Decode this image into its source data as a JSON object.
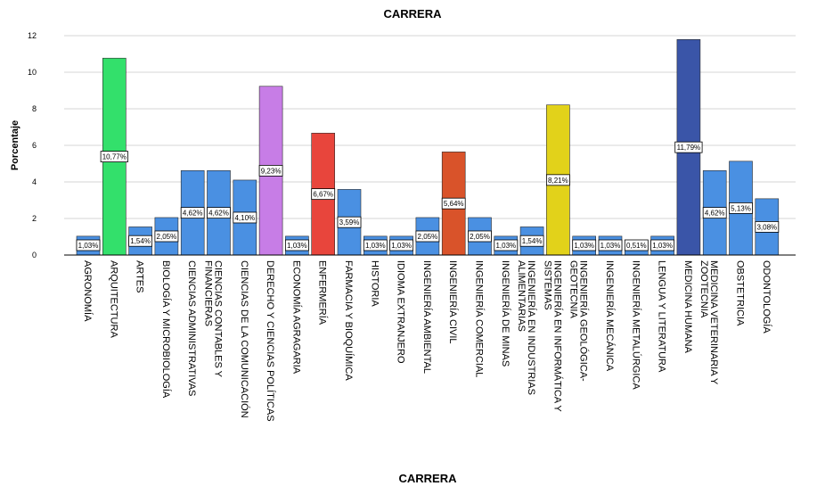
{
  "chart_data": {
    "type": "bar",
    "title": "CARRERA",
    "xlabel": "CARRERA",
    "ylabel": "Porcentaje",
    "ylim": [
      0,
      12
    ],
    "yticks": [
      0,
      2,
      4,
      6,
      8,
      10,
      12
    ],
    "grid": true,
    "categories": [
      [
        "AGRONOMÍA"
      ],
      [
        "ARQUITECTURA"
      ],
      [
        "ARTES"
      ],
      [
        "BIOLOGÍA Y MICROBIOLOGÍA"
      ],
      [
        "CIENCIAS ADMINISTRATIVAS"
      ],
      [
        "CIENCIAS CONTABLES Y",
        "FINANCIERAS"
      ],
      [
        "CIENCIAS DE LA COMUNICACIÓN"
      ],
      [
        "DERECHO Y CIENCIAS POLÍTICAS"
      ],
      [
        "ECONOMÍA AGRAGARIA"
      ],
      [
        "ENFERMERÍA"
      ],
      [
        "FARMACIA Y BIOQUÍMICA"
      ],
      [
        "HISTORIA"
      ],
      [
        "IDIOMA EXTRANJERO"
      ],
      [
        "INGENIERÍA AMBIENTAL"
      ],
      [
        "INGENIERÍA CIVIL"
      ],
      [
        "INGENIERÍA COMERCIAL"
      ],
      [
        "INGENIERÍA DE MINAS"
      ],
      [
        "INGENIERÍA EN INDUSTRIAS",
        "ALIMENTARIAS"
      ],
      [
        "INGENIERÍA EN INFORMÁTICA Y",
        "SISTEMAS"
      ],
      [
        "INGENIERÍA GEOLÓGICA-",
        "GEOTECNIA"
      ],
      [
        "INGENIERÍA MECÁNICA"
      ],
      [
        "INGENIERÍA METALÚRGICA"
      ],
      [
        "LENGUA Y LITERATURA"
      ],
      [
        "MEDICINA HUMANA"
      ],
      [
        "MEDICINA VETERINARIA Y",
        "ZOOTECNIA"
      ],
      [
        "OBSTETRICIA"
      ],
      [
        "ODONTOLOGÍA"
      ]
    ],
    "values": [
      1.03,
      10.77,
      1.54,
      2.05,
      4.62,
      4.62,
      4.1,
      9.23,
      1.03,
      6.67,
      3.59,
      1.03,
      1.03,
      2.05,
      5.64,
      2.05,
      1.03,
      1.54,
      8.21,
      1.03,
      1.03,
      0.51,
      1.03,
      11.79,
      4.62,
      5.13,
      3.08
    ],
    "data_labels": [
      "1,03%",
      "10,77%",
      "1,54%",
      "2,05%",
      "4,62%",
      "4,62%",
      "4,10%",
      "9,23%",
      "1,03%",
      "6,67%",
      "3,59%",
      "1,03%",
      "1,03%",
      "2,05%",
      "5,64%",
      "2,05%",
      "1,03%",
      "1,54%",
      "8,21%",
      "1,03%",
      "1,03%",
      "0,51%",
      "1,03%",
      "11,79%",
      "4,62%",
      "5,13%",
      "3,08%"
    ],
    "colors": [
      "#4a90e2",
      "#33e06b",
      "#4a90e2",
      "#4a90e2",
      "#4a90e2",
      "#4a90e2",
      "#4a90e2",
      "#c77de6",
      "#4a90e2",
      "#e8453c",
      "#4a90e2",
      "#4a90e2",
      "#4a90e2",
      "#4a90e2",
      "#d9532a",
      "#4a90e2",
      "#4a90e2",
      "#4a90e2",
      "#e2d21a",
      "#4a90e2",
      "#4a90e2",
      "#4a90e2",
      "#4a90e2",
      "#3a55a8",
      "#4a90e2",
      "#4a90e2",
      "#4a90e2"
    ]
  }
}
